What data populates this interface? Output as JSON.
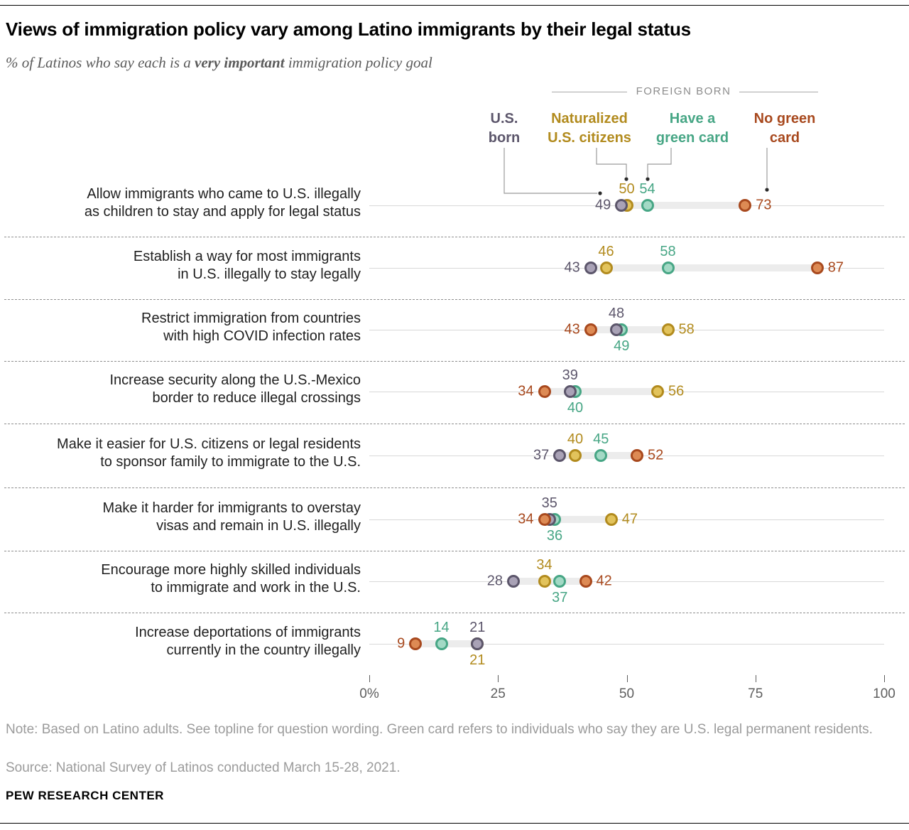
{
  "chart_data": {
    "type": "scatter",
    "variant": "dot-plot",
    "title": "Views of immigration policy vary among Latino immigrants by their legal status",
    "subtitle_prefix": "% of Latinos who say each is a ",
    "subtitle_bold": "very important",
    "subtitle_suffix": " immigration policy goal",
    "group_header": "FOREIGN BORN",
    "categories": [
      [
        "Allow immigrants who came to U.S. illegally",
        "as children to stay and apply for legal status"
      ],
      [
        "Establish a way for most immigrants",
        "in U.S. illegally to stay legally"
      ],
      [
        "Restrict immigration from countries",
        "with high COVID infection rates"
      ],
      [
        "Increase security along the U.S.-Mexico",
        "border to reduce illegal crossings"
      ],
      [
        "Make it easier for U.S. citizens or legal residents",
        "to sponsor family to immigrate to the U.S."
      ],
      [
        "Make it harder for immigrants to overstay",
        "visas and remain in U.S. illegally"
      ],
      [
        "Encourage more highly skilled individuals",
        "to immigrate and work in the U.S."
      ],
      [
        "Increase deportations of immigrants",
        "currently in the country illegally"
      ]
    ],
    "series": [
      {
        "id": "us_born",
        "name": "U.S. born",
        "fill": "#a9a2b6",
        "stroke": "#5c566b",
        "values": [
          49,
          43,
          48,
          39,
          37,
          35,
          28,
          21
        ]
      },
      {
        "id": "naturalized",
        "name": "Naturalized U.S. citizens",
        "fill": "#e2c35c",
        "stroke": "#b28b1e",
        "values": [
          50,
          46,
          58,
          56,
          40,
          47,
          34,
          21
        ]
      },
      {
        "id": "green_card",
        "name": "Have a green card",
        "fill": "#a3d9c5",
        "stroke": "#47a685",
        "values": [
          54,
          58,
          49,
          40,
          45,
          36,
          37,
          14
        ]
      },
      {
        "id": "no_green_card",
        "name": "No green card",
        "fill": "#dd8a54",
        "stroke": "#a8491e",
        "values": [
          73,
          87,
          43,
          34,
          52,
          34,
          42,
          9
        ]
      }
    ],
    "label_positions": [
      [
        "left",
        "above",
        "above",
        "right"
      ],
      [
        "left",
        "above",
        "above",
        "right"
      ],
      [
        "above",
        "right",
        "below",
        "left"
      ],
      [
        "above",
        "right",
        "below",
        "left"
      ],
      [
        "left",
        "above",
        "above",
        "right"
      ],
      [
        "above",
        "right",
        "below",
        "left"
      ],
      [
        "left",
        "above",
        "below",
        "right"
      ],
      [
        "above",
        "below",
        "above",
        "left"
      ]
    ],
    "xlim": [
      0,
      100
    ],
    "xticks": [
      {
        "value": 0,
        "label": "0%"
      },
      {
        "value": 25,
        "label": "25"
      },
      {
        "value": 50,
        "label": "50"
      },
      {
        "value": 75,
        "label": "75"
      },
      {
        "value": 100,
        "label": "100"
      }
    ],
    "grid": "row-lines-with-dashed-separators",
    "legend_position": "top"
  },
  "legend": {
    "groups": [
      {
        "id": "us_born",
        "lines": [
          "U.S.",
          "born"
        ],
        "color": "#5c566b"
      },
      {
        "id": "naturalized",
        "lines": [
          "Naturalized",
          "U.S. citizens"
        ],
        "color": "#b28b1e"
      },
      {
        "id": "green_card",
        "lines": [
          "Have a",
          "green card"
        ],
        "color": "#47a685"
      },
      {
        "id": "no_green_card",
        "lines": [
          "No green",
          "card"
        ],
        "color": "#a8491e"
      }
    ]
  },
  "footer": {
    "note": "Note: Based on Latino adults. See topline for question wording. Green card refers to individuals who say they are U.S. legal permanent residents.",
    "source": "Source: National Survey of Latinos conducted March 15-28, 2021.",
    "brand": "PEW RESEARCH CENTER"
  }
}
